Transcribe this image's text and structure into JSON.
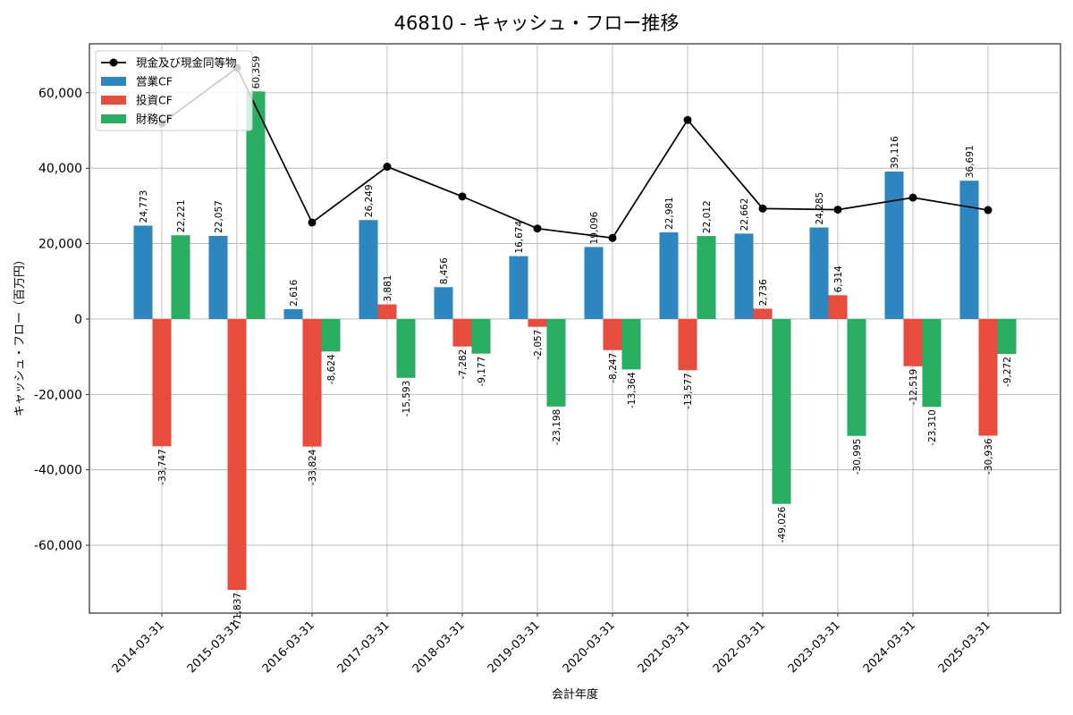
{
  "chart_data": {
    "type": "bar",
    "title": "46810 - キャッシュ・フロー推移",
    "xlabel": "会計年度",
    "ylabel": "キャッシュ・フロー（百万円）",
    "categories": [
      "2014-03-31",
      "2015-03-31",
      "2016-03-31",
      "2017-03-31",
      "2018-03-31",
      "2019-03-31",
      "2020-03-31",
      "2021-03-31",
      "2022-03-31",
      "2023-03-31",
      "2024-03-31",
      "2025-03-31"
    ],
    "ylim": [
      -78000,
      73000
    ],
    "yticks": [
      -60000,
      -40000,
      -20000,
      0,
      20000,
      40000,
      60000
    ],
    "ytick_labels": [
      "-60,000",
      "-40,000",
      "-20,000",
      "0",
      "20,000",
      "40,000",
      "60,000"
    ],
    "grid": true,
    "legend_position": "top-left",
    "series": [
      {
        "name": "営業CF",
        "kind": "bar",
        "color": "#2e86c1",
        "values": [
          24773,
          22057,
          2616,
          26249,
          8456,
          16674,
          19096,
          22981,
          22662,
          24285,
          39116,
          36691
        ],
        "labels": [
          "24,773",
          "22,057",
          "2,616",
          "26,249",
          "8,456",
          "16,674",
          "19,096",
          "22,981",
          "22,662",
          "24,285",
          "39,116",
          "36,691"
        ]
      },
      {
        "name": "投資CF",
        "kind": "bar",
        "color": "#e74c3c",
        "values": [
          -33747,
          -71837,
          -33824,
          3881,
          -7282,
          -2057,
          -8247,
          -13577,
          2736,
          6314,
          -12519,
          -30936
        ],
        "labels": [
          "-33,747",
          "-71,837",
          "-33,824",
          "3,881",
          "-7,282",
          "-2,057",
          "-8,247",
          "-13,577",
          "2,736",
          "6,314",
          "-12,519",
          "-30,936"
        ]
      },
      {
        "name": "財務CF",
        "kind": "bar",
        "color": "#27ae60",
        "values": [
          22221,
          60359,
          -8624,
          -15593,
          -9177,
          -23198,
          -13364,
          22012,
          -49026,
          -30995,
          -23310,
          -9272
        ],
        "labels": [
          "22,221",
          "60,359",
          "-8,624",
          "-15,593",
          "-9,177",
          "-23,198",
          "-13,364",
          "22,012",
          "-49,026",
          "-30,995",
          "-23,310",
          "-9,272"
        ]
      },
      {
        "name": "現金及び現金同等物",
        "kind": "line",
        "color": "#000000",
        "values": [
          51900,
          66600,
          25600,
          40400,
          32500,
          24000,
          21500,
          52800,
          29300,
          29000,
          32200,
          28900
        ]
      }
    ]
  }
}
